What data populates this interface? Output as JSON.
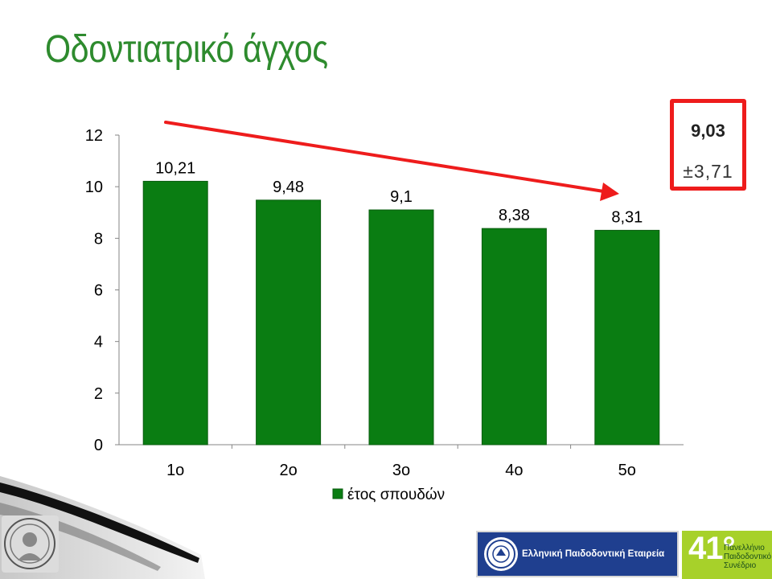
{
  "slide": {
    "title": "Οδοντιατρικό άγχος"
  },
  "chart_data": {
    "type": "bar",
    "categories": [
      "1ο",
      "2ο",
      "3ο",
      "4ο",
      "5ο"
    ],
    "series": [
      {
        "name": "έτος σπουδών",
        "values": [
          10.21,
          9.48,
          9.1,
          8.38,
          8.31
        ],
        "color": "#0a7d12"
      }
    ],
    "data_labels": [
      "10,21",
      "9,48",
      "9,1",
      "8,38",
      "8,31"
    ],
    "y_ticks": [
      "0",
      "2",
      "4",
      "6",
      "8",
      "10",
      "12"
    ],
    "ylim": [
      0,
      12
    ],
    "legend_position": "bottom",
    "trend_arrow_color": "#ee1c1c"
  },
  "stats": {
    "mean": "9,03",
    "sd": "±3,71",
    "border_color": "#ee1c1c"
  },
  "footer": {
    "society": "Ελληνική Παιδοδοντική Εταιρεία",
    "congress_number": "41°",
    "congress_text": "Πανελλήνιο Παιδοδοντικό Συνέδριο",
    "icons": [
      "university-seal-icon",
      "society-emblem-icon"
    ]
  }
}
